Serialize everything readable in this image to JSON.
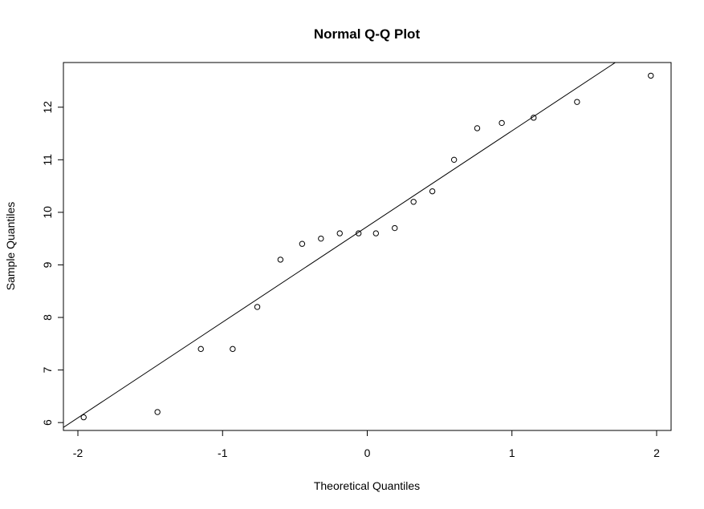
{
  "chart_data": {
    "type": "scatter",
    "title": "Normal Q-Q Plot",
    "xlabel": "Theoretical Quantiles",
    "ylabel": "Sample Quantiles",
    "xlim": [
      -2.1,
      2.1
    ],
    "ylim": [
      5.85,
      12.85
    ],
    "x_ticks": [
      -2,
      -1,
      0,
      1,
      2
    ],
    "y_ticks": [
      6,
      7,
      8,
      9,
      10,
      11,
      12
    ],
    "grid": false,
    "points": [
      {
        "x": -1.96,
        "y": 6.1
      },
      {
        "x": -1.45,
        "y": 6.2
      },
      {
        "x": -1.15,
        "y": 7.4
      },
      {
        "x": -0.93,
        "y": 7.4
      },
      {
        "x": -0.76,
        "y": 8.2
      },
      {
        "x": -0.6,
        "y": 9.1
      },
      {
        "x": -0.45,
        "y": 9.4
      },
      {
        "x": -0.32,
        "y": 9.5
      },
      {
        "x": -0.19,
        "y": 9.6
      },
      {
        "x": -0.06,
        "y": 9.6
      },
      {
        "x": 0.06,
        "y": 9.6
      },
      {
        "x": 0.19,
        "y": 9.7
      },
      {
        "x": 0.32,
        "y": 10.2
      },
      {
        "x": 0.45,
        "y": 10.4
      },
      {
        "x": 0.6,
        "y": 11.0
      },
      {
        "x": 0.76,
        "y": 11.6
      },
      {
        "x": 0.93,
        "y": 11.7
      },
      {
        "x": 1.15,
        "y": 11.8
      },
      {
        "x": 1.45,
        "y": 12.1
      },
      {
        "x": 1.96,
        "y": 12.6
      }
    ],
    "reference_line": {
      "intercept": 9.73,
      "slope": 1.82
    }
  }
}
